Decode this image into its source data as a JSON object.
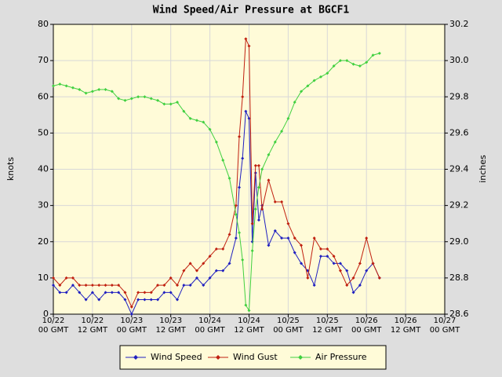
{
  "chart_data": {
    "type": "line",
    "title": "Wind Speed/Air Pressure at BGCF1",
    "y_label": "knots",
    "y2_label": "inches",
    "x": [
      0,
      2,
      4,
      6,
      8,
      10,
      12,
      14,
      16,
      18,
      20,
      22,
      24,
      26,
      28,
      30,
      32,
      34,
      36,
      38,
      40,
      42,
      44,
      46,
      48,
      50,
      52,
      54,
      56,
      57,
      58,
      59,
      60,
      61,
      62,
      63,
      64,
      66,
      68,
      70,
      72,
      74,
      76,
      78,
      80,
      82,
      84,
      86,
      88,
      90,
      92,
      94,
      96,
      98,
      100
    ],
    "xlim": [
      0,
      120
    ],
    "xticks": [
      {
        "value": 0,
        "label": "10/22\n00 GMT"
      },
      {
        "value": 12,
        "label": "10/22\n12 GMT"
      },
      {
        "value": 24,
        "label": "10/23\n00 GMT"
      },
      {
        "value": 36,
        "label": "10/23\n12 GMT"
      },
      {
        "value": 48,
        "label": "10/24\n00 GMT"
      },
      {
        "value": 60,
        "label": "10/24\n12 GMT"
      },
      {
        "value": 72,
        "label": "10/25\n00 GMT"
      },
      {
        "value": 84,
        "label": "10/25\n12 GMT"
      },
      {
        "value": 96,
        "label": "10/26\n00 GMT"
      },
      {
        "value": 108,
        "label": "10/26\n12 GMT"
      },
      {
        "value": 120,
        "label": "10/27\n00 GMT"
      }
    ],
    "ylim": [
      0,
      80
    ],
    "yticks": [
      0,
      10,
      20,
      30,
      40,
      50,
      60,
      70,
      80
    ],
    "y2lim": [
      28.6,
      30.2
    ],
    "y2ticks": [
      28.6,
      28.8,
      {
        "value": 29.0,
        "label": "29.0"
      },
      29.2,
      29.4,
      29.6,
      29.8,
      {
        "value": 30.0,
        "label": "30.0"
      },
      30.2
    ],
    "grid": true,
    "legend": "bottom",
    "series": [
      {
        "name": "Wind Speed",
        "color": "#2020c0",
        "axis": "y",
        "values": [
          8,
          6,
          6,
          8,
          6,
          4,
          6,
          4,
          6,
          6,
          6,
          4,
          0,
          4,
          4,
          4,
          4,
          6,
          6,
          4,
          8,
          8,
          10,
          8,
          10,
          12,
          12,
          14,
          21,
          35,
          43,
          56,
          54,
          20,
          39,
          26,
          30,
          19,
          23,
          21,
          21,
          17,
          14,
          12,
          8,
          16,
          16,
          14,
          14,
          12,
          6,
          8,
          12,
          14,
          10
        ]
      },
      {
        "name": "Wind Gust",
        "color": "#c02010",
        "axis": "y",
        "values": [
          10,
          8,
          10,
          10,
          8,
          8,
          8,
          8,
          8,
          8,
          8,
          6,
          2,
          6,
          6,
          6,
          8,
          8,
          10,
          8,
          12,
          14,
          12,
          14,
          16,
          18,
          18,
          22,
          30,
          49,
          60,
          76,
          74,
          25,
          41,
          41,
          29,
          37,
          31,
          31,
          25,
          21,
          19,
          10,
          21,
          18,
          18,
          16,
          12,
          8,
          10,
          14,
          21,
          14,
          10
        ]
      },
      {
        "name": "Air Pressure",
        "color": "#40d040",
        "axis": "y2",
        "values": [
          29.86,
          29.87,
          29.86,
          29.85,
          29.84,
          29.82,
          29.83,
          29.84,
          29.84,
          29.83,
          29.79,
          29.78,
          29.79,
          29.8,
          29.8,
          29.79,
          29.78,
          29.76,
          29.76,
          29.77,
          29.72,
          29.68,
          29.67,
          29.66,
          29.62,
          29.55,
          29.45,
          29.35,
          29.15,
          29.05,
          28.9,
          28.65,
          28.62,
          28.95,
          29.18,
          29.3,
          29.4,
          29.48,
          29.55,
          29.61,
          29.68,
          29.77,
          29.83,
          29.86,
          29.89,
          29.91,
          29.93,
          29.97,
          30.0,
          30.0,
          29.98,
          29.97,
          29.99,
          30.03,
          30.04
        ]
      }
    ]
  }
}
